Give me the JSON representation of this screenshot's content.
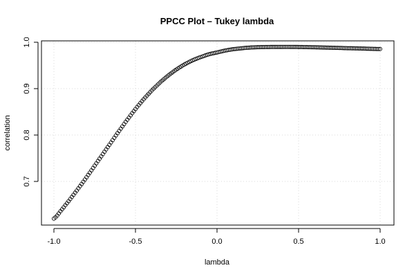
{
  "chart_data": {
    "type": "scatter",
    "title": "PPCC Plot – Tukey lambda",
    "xlabel": "lambda",
    "ylabel": "correlation",
    "xlim": [
      -1.0,
      1.0
    ],
    "ylim": [
      0.6,
      1.0
    ],
    "xticks": [
      -1.0,
      -0.5,
      0.0,
      0.5,
      1.0
    ],
    "xtick_labels": [
      "-1.0",
      "-0.5",
      "0.0",
      "0.5",
      "1.0"
    ],
    "yticks": [
      0.7,
      0.8,
      0.9,
      1.0
    ],
    "ytick_labels": [
      "0.7",
      "0.8",
      "0.9",
      "1.0"
    ],
    "grid": true,
    "marker": "open-circle",
    "point_color": "#000000",
    "grid_color": "#d9d9d9",
    "series": [
      {
        "x": [
          -1.0,
          -0.95,
          -0.9,
          -0.85,
          -0.8,
          -0.75,
          -0.7,
          -0.65,
          -0.6,
          -0.55,
          -0.5,
          -0.45,
          -0.4,
          -0.35,
          -0.3,
          -0.25,
          -0.2,
          -0.15,
          -0.1,
          -0.05,
          0.0,
          0.05,
          0.1,
          0.15,
          0.2,
          0.25,
          0.3,
          0.35,
          0.4,
          0.45,
          0.5,
          0.55,
          0.6,
          0.65,
          0.7,
          0.75,
          0.8,
          0.85,
          0.9,
          0.95,
          1.0
        ],
        "y": [
          0.62,
          0.64,
          0.662,
          0.685,
          0.709,
          0.734,
          0.759,
          0.784,
          0.809,
          0.833,
          0.856,
          0.877,
          0.896,
          0.913,
          0.928,
          0.941,
          0.952,
          0.961,
          0.968,
          0.974,
          0.978,
          0.982,
          0.985,
          0.987,
          0.9885,
          0.9893,
          0.9897,
          0.9899,
          0.99,
          0.99,
          0.9898,
          0.9895,
          0.9891,
          0.9887,
          0.9882,
          0.9877,
          0.9872,
          0.9868,
          0.9863,
          0.9858,
          0.9854
        ]
      }
    ]
  }
}
